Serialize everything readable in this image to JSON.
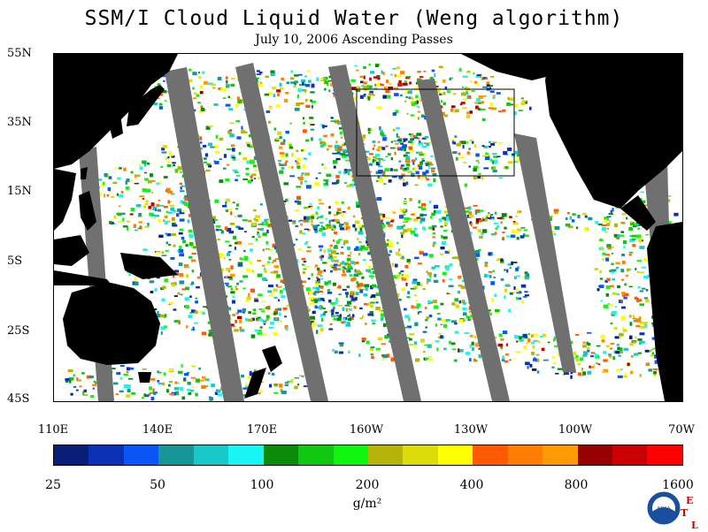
{
  "title": "SSM/I Cloud Liquid Water (Weng algorithm)",
  "subtitle": "July 10, 2006  Ascending Passes",
  "lat_labels": [
    "55N",
    "35N",
    "15N",
    "5S",
    "25S",
    "45S"
  ],
  "lon_labels": [
    "110E",
    "140E",
    "170E",
    "160W",
    "130W",
    "100W",
    "70W"
  ],
  "colorbar": {
    "colors": [
      "#0a1e78",
      "#0b32b4",
      "#0a55f5",
      "#169696",
      "#19c8c8",
      "#19f5f5",
      "#0a8c0a",
      "#0fc80f",
      "#0ff50f",
      "#b4b40a",
      "#dcdc0a",
      "#ffff00",
      "#ff5a00",
      "#ff7d00",
      "#ff9b00",
      "#960000",
      "#c80000",
      "#ff0000"
    ],
    "tick_labels": [
      "25",
      "50",
      "100",
      "200",
      "400",
      "800",
      "1600"
    ],
    "units": "g/m²"
  },
  "logo": {
    "text": "NOAA",
    "corner_letters": [
      "E",
      "T",
      "L"
    ]
  },
  "map": {
    "land_color": "#000000",
    "no_data_color": "#707070",
    "ocean_color": "#ffffff"
  }
}
